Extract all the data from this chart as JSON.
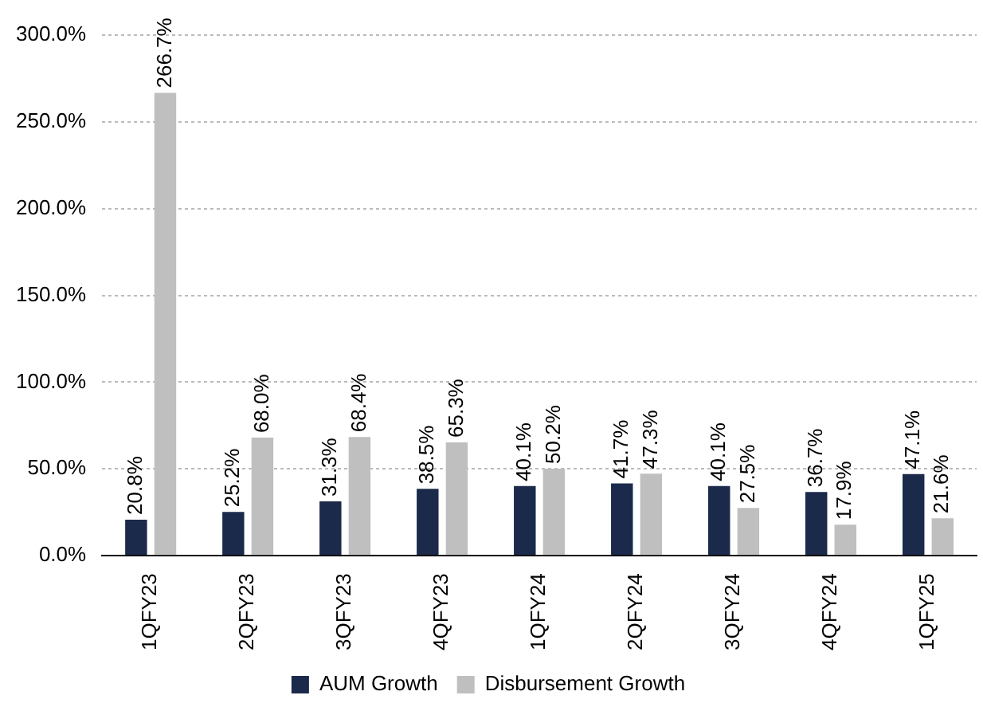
{
  "chart_data": {
    "type": "bar",
    "categories": [
      "1QFY23",
      "2QFY23",
      "3QFY23",
      "4QFY23",
      "1QFY24",
      "2QFY24",
      "3QFY24",
      "4QFY24",
      "1QFY25"
    ],
    "series": [
      {
        "name": "AUM Growth",
        "color": "#1b2a4a",
        "values": [
          20.8,
          25.2,
          31.3,
          38.5,
          40.1,
          41.7,
          40.1,
          36.7,
          47.1
        ],
        "value_labels": [
          "20.8%",
          "25.2%",
          "31.3%",
          "38.5%",
          "40.1%",
          "41.7%",
          "40.1%",
          "36.7%",
          "47.1%"
        ]
      },
      {
        "name": "Disbursement Growth",
        "color": "#bfbfbf",
        "values": [
          266.7,
          68.0,
          68.4,
          65.3,
          50.2,
          47.3,
          27.5,
          17.9,
          21.6
        ],
        "value_labels": [
          "266.7%",
          "68.0%",
          "68.4%",
          "65.3%",
          "50.2%",
          "47.3%",
          "27.5%",
          "17.9%",
          "21.6%"
        ]
      }
    ],
    "ylim": [
      0,
      300
    ],
    "yticks": [
      {
        "value": 0,
        "label": "0.0%"
      },
      {
        "value": 50,
        "label": "50.0%"
      },
      {
        "value": 100,
        "label": "100.0%"
      },
      {
        "value": 150,
        "label": "150.0%"
      },
      {
        "value": 200,
        "label": "200.0%"
      },
      {
        "value": 250,
        "label": "250.0%"
      },
      {
        "value": 300,
        "label": "300.0%"
      }
    ],
    "grid": "y",
    "legend": "bottom"
  }
}
